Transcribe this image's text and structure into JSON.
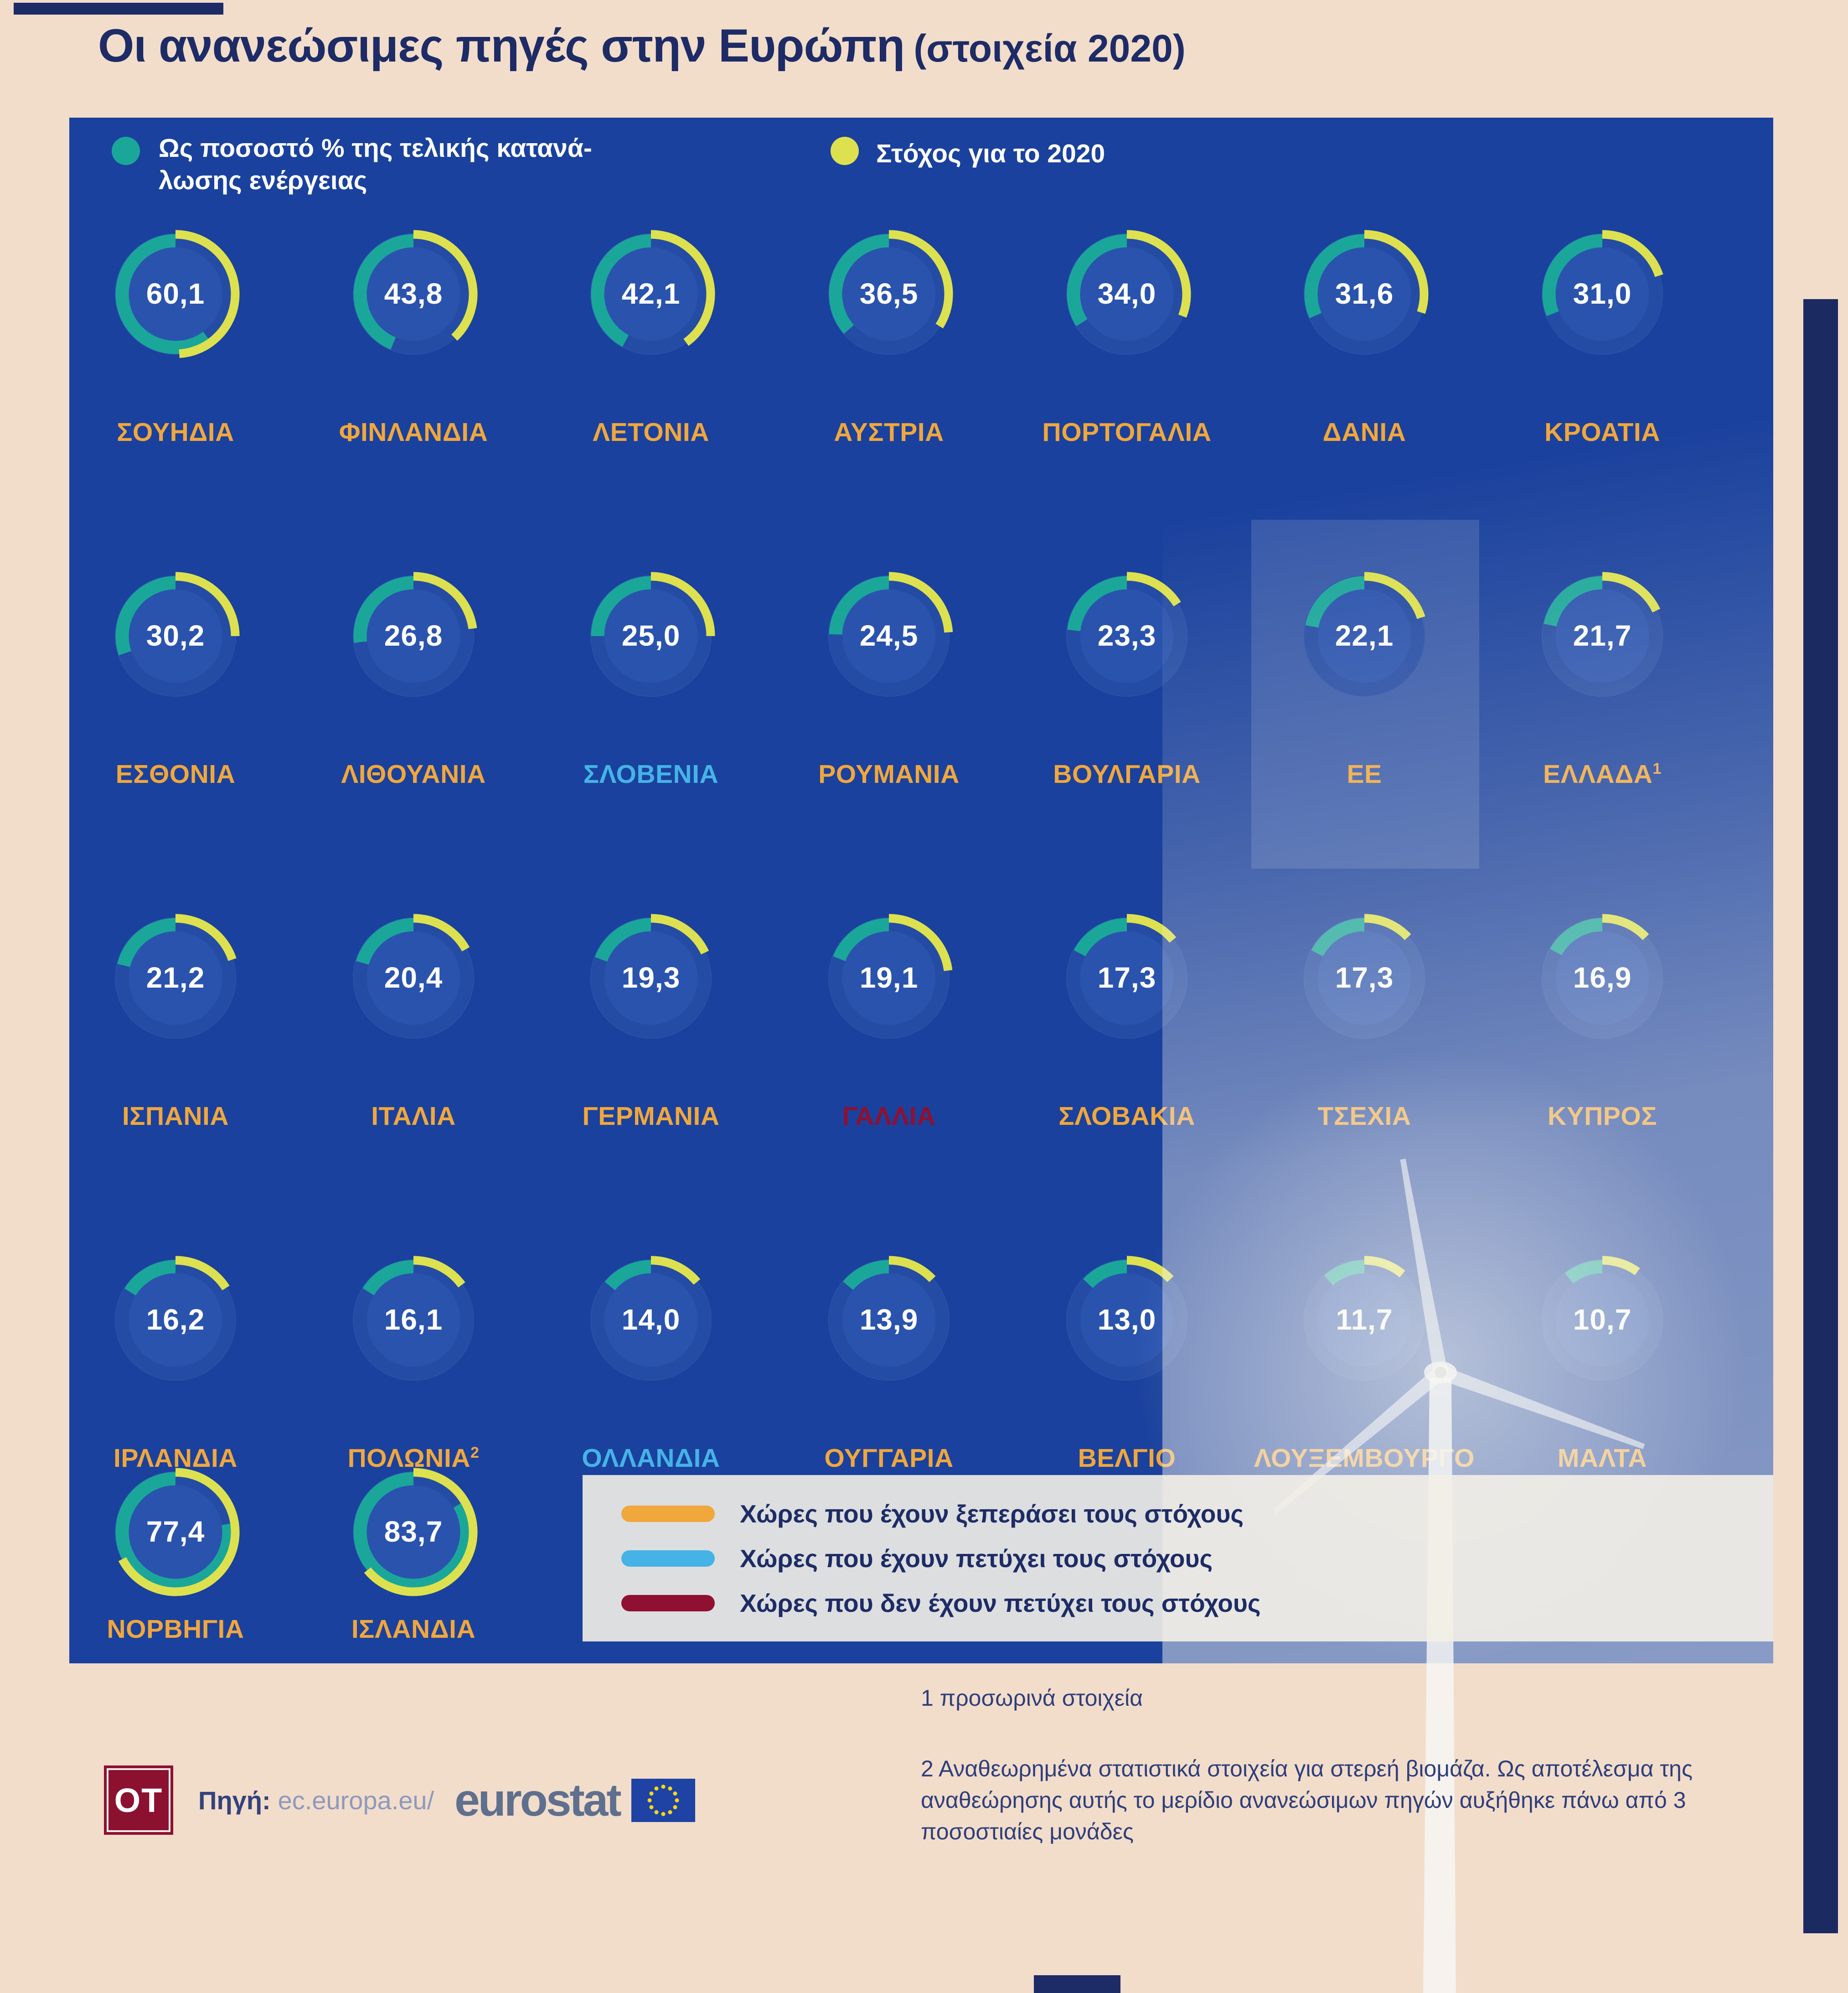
{
  "page": {
    "title_main": "Οι ανανεώσιμες πηγές στην Ευρώπη",
    "title_suffix": "(στοιχεία 2020)"
  },
  "legend": {
    "actual_label_line1": "Ως ποσοστό % της τελικής κατανά-",
    "actual_label_line2": "λωσης ενέργειας",
    "target_label": "Στόχος για το 2020",
    "actual_color": "#1aa79a",
    "target_color": "#dde14f"
  },
  "status_legend": {
    "items": [
      {
        "label": "Χώρες που έχουν ξεπεράσει τους στόχους",
        "color": "#f0a73c"
      },
      {
        "label": "Χώρες που έχουν πετύχει τους στόχους",
        "color": "#45b3e6"
      },
      {
        "label": "Χώρες που δεν έχουν πετύχει τους στόχους",
        "color": "#8f1030"
      }
    ]
  },
  "footnotes": {
    "note1": "1 προσωρινά στοιχεία",
    "note2": "2 Αναθεωρημένα στατιστικά στοιχεία για στερεή βιομάζα. Ως αποτέλεσμα της αναθεώρησης αυτής το μερίδιο ανανεώσιμων πηγών αυξήθηκε πάνω από 3 ποσοστιαίες μονάδες"
  },
  "source": {
    "logo": "OT",
    "label": "Πηγή:",
    "url": "ec.europa.eu/",
    "brand": "eurostat"
  },
  "chart_data": {
    "type": "donut-grid",
    "title": "Οι ανανεώσιμες πηγές στην Ευρώπη (στοιχεία 2020)",
    "unit": "% της τελικής κατανάλωσης ενέργειας",
    "value_series": "Ως ποσοστό % της τελικής κατανάλωσης ενέργειας",
    "target_series": "Στόχος για το 2020",
    "disc_color": "#2a53ae",
    "track_color": "#254ca4",
    "value_color": "#1aa79a",
    "target_color": "#dde14f",
    "status_colors": {
      "exceeded": "#f0a73c",
      "met": "#45b3e6",
      "missed": "#8f1030"
    },
    "countries": [
      {
        "name": "ΣΟΥΗΔΙΑ",
        "display": "60,1",
        "value": 60.1,
        "target_est": 49,
        "status": "exceeded",
        "row": 0,
        "col": 0,
        "sup": ""
      },
      {
        "name": "ΦΙΝΛΑΝΔΙΑ",
        "display": "43,8",
        "value": 43.8,
        "target_est": 38,
        "status": "exceeded",
        "row": 0,
        "col": 1,
        "sup": ""
      },
      {
        "name": "ΛΕΤΟΝΙΑ",
        "display": "42,1",
        "value": 42.1,
        "target_est": 40,
        "status": "exceeded",
        "row": 0,
        "col": 2,
        "sup": ""
      },
      {
        "name": "ΑΥΣΤΡΙΑ",
        "display": "36,5",
        "value": 36.5,
        "target_est": 34,
        "status": "exceeded",
        "row": 0,
        "col": 3,
        "sup": ""
      },
      {
        "name": "ΠΟΡΤΟΓΑΛΙΑ",
        "display": "34,0",
        "value": 34.0,
        "target_est": 31,
        "status": "exceeded",
        "row": 0,
        "col": 4,
        "sup": ""
      },
      {
        "name": "ΔΑΝΙΑ",
        "display": "31,6",
        "value": 31.6,
        "target_est": 30,
        "status": "exceeded",
        "row": 0,
        "col": 5,
        "sup": ""
      },
      {
        "name": "ΚΡΟΑΤΙΑ",
        "display": "31,0",
        "value": 31.0,
        "target_est": 20,
        "status": "exceeded",
        "row": 0,
        "col": 6,
        "sup": ""
      },
      {
        "name": "ΕΣΘΟΝΙΑ",
        "display": "30,2",
        "value": 30.2,
        "target_est": 25,
        "status": "exceeded",
        "row": 1,
        "col": 0,
        "sup": ""
      },
      {
        "name": "ΛΙΘΟΥΑΝΙΑ",
        "display": "26,8",
        "value": 26.8,
        "target_est": 23,
        "status": "exceeded",
        "row": 1,
        "col": 1,
        "sup": ""
      },
      {
        "name": "ΣΛΟΒΕΝΙΑ",
        "display": "25,0",
        "value": 25.0,
        "target_est": 25,
        "status": "met",
        "row": 1,
        "col": 2,
        "sup": ""
      },
      {
        "name": "ΡΟΥΜΑΝΙΑ",
        "display": "24,5",
        "value": 24.5,
        "target_est": 24,
        "status": "exceeded",
        "row": 1,
        "col": 3,
        "sup": ""
      },
      {
        "name": "ΒΟΥΛΓΑΡΙΑ",
        "display": "23,3",
        "value": 23.3,
        "target_est": 16,
        "status": "exceeded",
        "row": 1,
        "col": 4,
        "sup": ""
      },
      {
        "name": "ΕΕ",
        "display": "22,1",
        "value": 22.1,
        "target_est": 20,
        "status": "exceeded",
        "row": 1,
        "col": 5,
        "sup": ""
      },
      {
        "name": "ΕΛΛΑΔΑ",
        "display": "21,7",
        "value": 21.7,
        "target_est": 18,
        "status": "exceeded",
        "row": 1,
        "col": 6,
        "sup": "1"
      },
      {
        "name": "ΙΣΠΑΝΙΑ",
        "display": "21,2",
        "value": 21.2,
        "target_est": 20,
        "status": "exceeded",
        "row": 2,
        "col": 0,
        "sup": ""
      },
      {
        "name": "ΙΤΑΛΙΑ",
        "display": "20,4",
        "value": 20.4,
        "target_est": 17,
        "status": "exceeded",
        "row": 2,
        "col": 1,
        "sup": ""
      },
      {
        "name": "ΓΕΡΜΑΝΙΑ",
        "display": "19,3",
        "value": 19.3,
        "target_est": 18,
        "status": "exceeded",
        "row": 2,
        "col": 2,
        "sup": ""
      },
      {
        "name": "ΓΑΛΛΙΑ",
        "display": "19,1",
        "value": 19.1,
        "target_est": 23,
        "status": "missed",
        "row": 2,
        "col": 3,
        "sup": ""
      },
      {
        "name": "ΣΛΟΒΑΚΙΑ",
        "display": "17,3",
        "value": 17.3,
        "target_est": 14,
        "status": "exceeded",
        "row": 2,
        "col": 4,
        "sup": ""
      },
      {
        "name": "ΤΣΕΧΙΑ",
        "display": "17,3",
        "value": 17.3,
        "target_est": 13,
        "status": "exceeded",
        "row": 2,
        "col": 5,
        "sup": ""
      },
      {
        "name": "ΚΥΠΡΟΣ",
        "display": "16,9",
        "value": 16.9,
        "target_est": 13,
        "status": "exceeded",
        "row": 2,
        "col": 6,
        "sup": ""
      },
      {
        "name": "ΙΡΛΑΝΔΙΑ",
        "display": "16,2",
        "value": 16.2,
        "target_est": 16,
        "status": "exceeded",
        "row": 3,
        "col": 0,
        "sup": ""
      },
      {
        "name": "ΠΟΛΩΝΙΑ",
        "display": "16,1",
        "value": 16.1,
        "target_est": 15,
        "status": "exceeded",
        "row": 3,
        "col": 1,
        "sup": "2"
      },
      {
        "name": "ΟΛΛΑΝΔΙΑ",
        "display": "14,0",
        "value": 14.0,
        "target_est": 14,
        "status": "met",
        "row": 3,
        "col": 2,
        "sup": ""
      },
      {
        "name": "ΟΥΓΓΑΡΙΑ",
        "display": "13,9",
        "value": 13.9,
        "target_est": 13,
        "status": "exceeded",
        "row": 3,
        "col": 3,
        "sup": ""
      },
      {
        "name": "ΒΕΛΓΙΟ",
        "display": "13,0",
        "value": 13.0,
        "target_est": 13,
        "status": "exceeded",
        "row": 3,
        "col": 4,
        "sup": ""
      },
      {
        "name": "ΛΟΥΞΕΜΒΟΥΡΓΟ",
        "display": "11,7",
        "value": 11.7,
        "target_est": 11,
        "status": "exceeded",
        "row": 3,
        "col": 5,
        "sup": ""
      },
      {
        "name": "ΜΑΛΤΑ",
        "display": "10,7",
        "value": 10.7,
        "target_est": 10,
        "status": "exceeded",
        "row": 3,
        "col": 6,
        "sup": ""
      },
      {
        "name": "ΝΟΡΒΗΓΙΑ",
        "display": "77,4",
        "value": 77.4,
        "target_est": 67.5,
        "status": "exceeded",
        "row": 4,
        "col": 0,
        "sup": ""
      },
      {
        "name": "ΙΣΛΑΝΔΙΑ",
        "display": "83,7",
        "value": 83.7,
        "target_est": 64,
        "status": "exceeded",
        "row": 4,
        "col": 1,
        "sup": ""
      }
    ]
  }
}
